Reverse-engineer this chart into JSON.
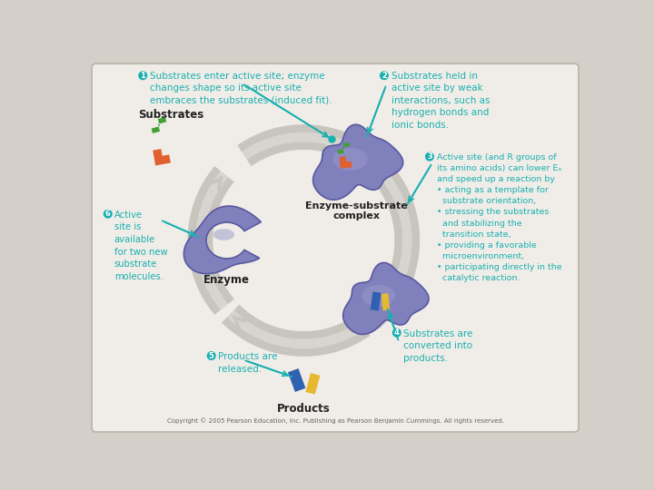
{
  "background_color": "#d4cfc8",
  "panel_color": "#f0ede8",
  "label1_text": " Substrates enter active site; enzyme\n changes shape so its active site\n embraces the substrates (induced fit).",
  "label2_text": " Substrates held in\nactive site by weak\ninteractions, such as\nhydrogen bonds and\nionic bonds.",
  "label3_text": " Active site (and R groups of\nits amino acids) can lower Eₐ\nand speed up a reaction by\n• acting as a template for\n   substrate orientation,\n• stressing the substrates\n   and stabilizing the\n   transition state,\n• providing a favorable\n   microenvironment,\n• participating directly in the\n   catalytic reaction.",
  "label4_text": " Substrates are\nconverted into\nproducts.",
  "label5_text": " Products are\n   released.",
  "label6_text": " Active\nsite is\navailable\nfor two new\nsubstrate\nmolecules.",
  "substrates_label": "Substrates",
  "enzyme_substrate_label": "Enzyme-substrate\ncomplex",
  "enzyme_label": "Enzyme",
  "products_label": "Products",
  "copyright_text": "Copyright © 2005 Pearson Education, Inc. Publishing as Pearson Benjamin Cummings. All rights reserved.",
  "teal_color": "#1ab0b0",
  "purple_color": "#8080bc",
  "purple_light": "#9898cc",
  "purple_dark": "#5858a0",
  "arrow_color": "#c8c5be",
  "orange_color": "#e06030",
  "green_color": "#40a030",
  "blue_product": "#3060b0",
  "yellow_product": "#e8b830",
  "text_color": "#222222"
}
